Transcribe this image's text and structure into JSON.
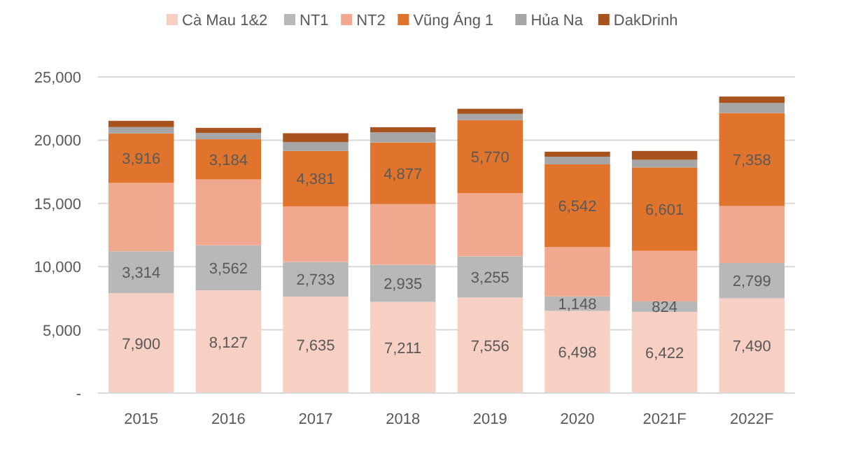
{
  "chart_data": {
    "type": "bar",
    "stacked": true,
    "categories": [
      "2015",
      "2016",
      "2017",
      "2018",
      "2019",
      "2020",
      "2021F",
      "2022F"
    ],
    "series": [
      {
        "name": "Cà Mau 1&2",
        "color": "#f7d0c3",
        "values": [
          7900,
          8127,
          7635,
          7211,
          7556,
          6498,
          6422,
          7490
        ],
        "value_labels": [
          "7,900",
          "8,127",
          "7,635",
          "7,211",
          "7,556",
          "6,498",
          "6,422",
          "7,490"
        ]
      },
      {
        "name": "NT1",
        "color": "#b8b8b8",
        "values": [
          3314,
          3562,
          2733,
          2935,
          3255,
          1148,
          824,
          2799
        ],
        "value_labels": [
          "3,314",
          "3,562",
          "2,733",
          "2,935",
          "3,255",
          "1,148",
          "824",
          "2,799"
        ]
      },
      {
        "name": "NT2",
        "color": "#f0a98e",
        "values": [
          5400,
          5200,
          4400,
          4800,
          5000,
          3900,
          4000,
          4500
        ]
      },
      {
        "name": "Vũng Áng 1",
        "color": "#e0742c",
        "values": [
          3916,
          3184,
          4381,
          4877,
          5770,
          6542,
          6601,
          7358
        ],
        "value_labels": [
          "3,916",
          "3,184",
          "4,381",
          "4,877",
          "5,770",
          "6,542",
          "6,601",
          "7,358"
        ]
      },
      {
        "name": "Hủa Na",
        "color": "#a6a6a6",
        "values": [
          500,
          500,
          700,
          800,
          500,
          600,
          600,
          800
        ]
      },
      {
        "name": "DakDrinh",
        "color": "#a8521e",
        "values": [
          500,
          400,
          700,
          400,
          400,
          400,
          700,
          500
        ]
      }
    ],
    "ylim": [
      0,
      25000
    ],
    "yticks": [
      {
        "value": 0,
        "label": "-"
      },
      {
        "value": 5000,
        "label": "5,000"
      },
      {
        "value": 10000,
        "label": "10,000"
      },
      {
        "value": 15000,
        "label": "15,000"
      },
      {
        "value": 20000,
        "label": "20,000"
      },
      {
        "value": 25000,
        "label": "25,000"
      }
    ],
    "grid": "y",
    "legend": "top"
  }
}
